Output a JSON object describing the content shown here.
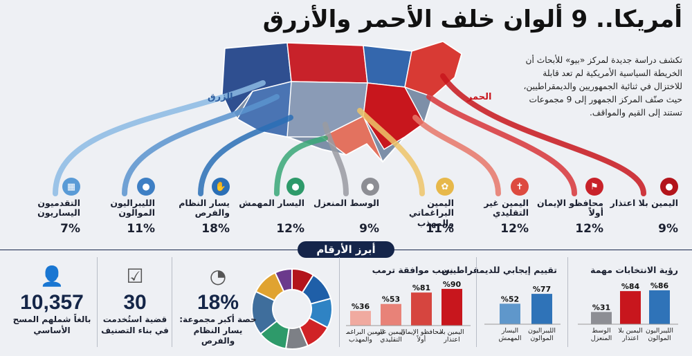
{
  "title": "أمريكا.. 9 ألوان خلف الأحمر والأزرق",
  "intro": "تكشف دراسة جديدة لمركز «بيو» للأبحاث أن الخريطة السياسية الأمريكية لم تعد قابلة للاختزال في ثنائية الجمهوريين والديمقراطيين، حيث صنّف المركز الجمهور إلى 9 مجموعات تستند إلى القيم والمواقف.",
  "labels": {
    "blue": "الزرق",
    "red": "الحمر"
  },
  "colors": {
    "red": "#c8161d",
    "blue": "#2f5fa0",
    "gray": "#8d8e94",
    "lightblue": "#78aad6",
    "navy": "#15254a"
  },
  "groups": [
    {
      "name": "اليمين بلا اعتذار",
      "pct": "9%",
      "icon": "person-icon",
      "color": "#b3141b"
    },
    {
      "name": "محافظو الإيمان أولاً",
      "pct": "12%",
      "icon": "flag-icon",
      "color": "#c8222a"
    },
    {
      "name": "اليمين غير التقليدي",
      "pct": "12%",
      "icon": "cross-icon",
      "color": "#dd4a3f"
    },
    {
      "name": "اليمين البراغماتي والمهذب",
      "pct": "11%",
      "icon": "users-icon",
      "color": "#e7b84a"
    },
    {
      "name": "الوسط المنعزل",
      "pct": "9%",
      "icon": "person-icon",
      "color": "#8d8e94"
    },
    {
      "name": "اليسار المهمش",
      "pct": "12%",
      "icon": "person-icon",
      "color": "#2e9a6a"
    },
    {
      "name": "يسار النظام والفرص",
      "pct": "18%",
      "icon": "handshake-icon",
      "color": "#2b6fb6"
    },
    {
      "name": "الليبراليون الموالون",
      "pct": "11%",
      "icon": "person-icon",
      "color": "#3e7fc4"
    },
    {
      "name": "التقدميون اليساريون",
      "pct": "7%",
      "icon": "chart-icon",
      "color": "#5a9bd6"
    }
  ],
  "key_figures_title": "أبرز الأرقام",
  "stats": [
    {
      "value": "10,357",
      "label": "بالغاً شملهم المسح الأساسي",
      "icon": "person-icon"
    },
    {
      "value": "30",
      "label": "قضية استُخدمت في بناء التصنيف",
      "icon": "checklist-icon"
    },
    {
      "value": "18%",
      "label": "حصة أكبر مجموعة: يسار النظام والفرص",
      "icon": "pie-icon"
    }
  ],
  "chart_data": [
    {
      "type": "pie",
      "title": "",
      "slices": [
        {
          "label": "اليمين بلا اعتذار",
          "value": 9,
          "color": "#b3141b"
        },
        {
          "label": "محافظو الإيمان أولاً",
          "value": 12,
          "color": "#1f5fa8"
        },
        {
          "label": "اليمين غير التقليدي",
          "value": 12,
          "color": "#2f83c4"
        },
        {
          "label": "اليمين البراغماتي والمهذب",
          "value": 11,
          "color": "#d02226"
        },
        {
          "label": "الوسط المنعزل",
          "value": 9,
          "color": "#7d8086"
        },
        {
          "label": "اليسار المهمش",
          "value": 12,
          "color": "#2e9a6a"
        },
        {
          "label": "يسار النظام والفرص",
          "value": 18,
          "color": "#3f6e9c"
        },
        {
          "label": "الليبراليون الموالون",
          "value": 11,
          "color": "#e0a331"
        },
        {
          "label": "التقدميون اليساريون",
          "value": 7,
          "color": "#6b3a8c"
        }
      ]
    },
    {
      "type": "bar",
      "title": "نسب موافقة ترمب",
      "categories": [
        "اليمين بلا اعتذار",
        "محافظو الإيمان أولاً",
        "اليمين غير التقليدي",
        "اليمين البراغماتي والمهذب"
      ],
      "values": [
        90,
        81,
        53,
        36
      ],
      "value_labels": [
        "%90",
        "%81",
        "%53",
        "%36"
      ],
      "colors": [
        "#c8161d",
        "#d6453f",
        "#e88278",
        "#f0aaa0"
      ],
      "ylim": [
        0,
        100
      ]
    },
    {
      "type": "bar",
      "title": "تقييم إيجابي للديمقراطيين",
      "categories": [
        "الليبراليون الموالون",
        "اليسار المهمش"
      ],
      "values": [
        77,
        52
      ],
      "value_labels": [
        "%77",
        "%52"
      ],
      "colors": [
        "#2f73b8",
        "#5f97cb"
      ],
      "ylim": [
        0,
        100
      ]
    },
    {
      "type": "bar",
      "title": "رؤية الانتخابات مهمة",
      "categories": [
        "الليبراليون الموالون",
        "اليمين بلا اعتذار",
        "الوسط المنعزل"
      ],
      "values": [
        86,
        84,
        31
      ],
      "value_labels": [
        "%86",
        "%84",
        "%31"
      ],
      "colors": [
        "#2f73b8",
        "#c8161d",
        "#8d8e94"
      ],
      "ylim": [
        0,
        100
      ]
    }
  ]
}
